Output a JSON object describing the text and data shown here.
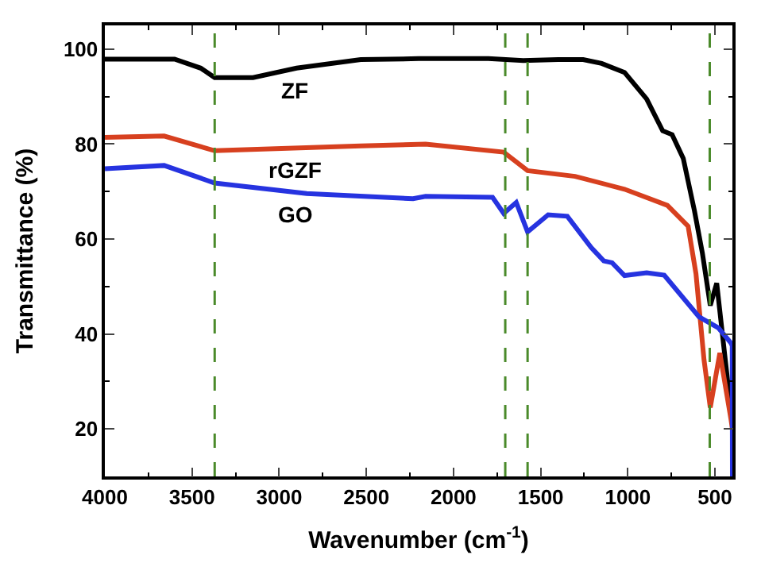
{
  "chart_data": {
    "type": "line",
    "xlabel": "Wavenumber (cm$^{-1}$)",
    "ylabel": "Transmittance (%)",
    "xlim": [
      4000,
      400
    ],
    "xticks": [
      4000,
      3500,
      3000,
      2500,
      2000,
      1500,
      1000,
      500
    ],
    "ylim": [
      10,
      105
    ],
    "yticks": [
      20,
      40,
      60,
      80,
      100
    ],
    "line_style": "solid",
    "series": [
      {
        "name": "ZF",
        "color": "#000000",
        "x": [
          4000,
          3600,
          3450,
          3370,
          3150,
          2900,
          2532,
          2200,
          1800,
          1600,
          1400,
          1256,
          1150,
          1019,
          892,
          800,
          746,
          682,
          618,
          572,
          527,
          490,
          427,
          400
        ],
        "values": [
          97.9,
          97.9,
          96,
          94,
          94,
          96,
          97.8,
          98,
          98,
          97.6,
          97.8,
          97.8,
          97,
          95.1,
          89.5,
          82.8,
          82,
          77,
          66,
          57,
          46,
          50.7,
          30,
          25
        ]
      },
      {
        "name": "rGZF",
        "color": "#d7401f",
        "x": [
          4000,
          3660,
          3370,
          2532,
          2160,
          1712,
          1575,
          1302,
          1019,
          773,
          654,
          609,
          563,
          527,
          472,
          408,
          400
        ],
        "values": [
          81.4,
          81.7,
          78.6,
          79.6,
          80,
          78.3,
          74.4,
          73.2,
          70.5,
          67.1,
          62.7,
          52.7,
          34.6,
          24.5,
          36,
          22,
          20
        ]
      },
      {
        "name": "GO",
        "color": "#2633e0",
        "x": [
          4000,
          3660,
          3370,
          2842,
          2232,
          2160,
          1776,
          1712,
          1640,
          1575,
          1457,
          1347,
          1210,
          1138,
          1090,
          1019,
          892,
          791,
          591,
          481,
          408,
          401,
          400
        ],
        "values": [
          74.8,
          75.5,
          71.8,
          69.6,
          68.5,
          69,
          68.8,
          65.4,
          67.7,
          61.5,
          65.1,
          64.8,
          58.2,
          55.4,
          55,
          52.3,
          52.9,
          52.4,
          43.6,
          41.3,
          38.1,
          37.5,
          10
        ]
      }
    ],
    "ref_lines": [
      {
        "axis": "x",
        "value": 3370,
        "color": "#4a8a2a",
        "line_style": "dashed"
      },
      {
        "axis": "x",
        "value": 1703,
        "color": "#4a8a2a",
        "line_style": "dashed"
      },
      {
        "axis": "x",
        "value": 1575,
        "color": "#4a8a2a",
        "line_style": "dashed"
      },
      {
        "axis": "x",
        "value": 530,
        "color": "#4a8a2a",
        "line_style": "dashed"
      }
    ]
  }
}
